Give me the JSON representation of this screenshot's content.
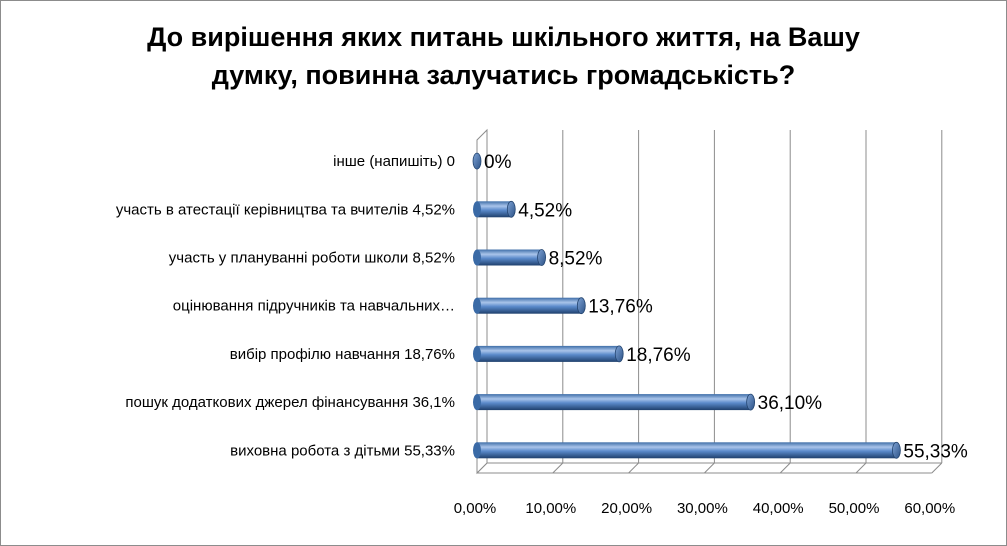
{
  "chart_data": {
    "type": "bar",
    "orientation": "horizontal",
    "style": "3d-cylinder",
    "title": "До вирішення яких питань шкільного життя, на Вашу думку, повинна залучатись громадськість?",
    "title_lines": [
      "До вирішення яких питань шкільного життя, на Вашу",
      "думку, повинна залучатись громадськість?"
    ],
    "categories": [
      "інше (напишіть) 0",
      "участь в атестації керівництва та вчителів 4,52%",
      "участь у плануванні роботи школи 8,52%",
      "оцінювання підручників та навчальних…",
      "вибір профілю навчання   18,76%",
      "пошук додаткових джерел фінансування 36,1%",
      "виховна робота з дітьми 55,33%"
    ],
    "values": [
      0,
      4.52,
      8.52,
      13.76,
      18.76,
      36.1,
      55.33
    ],
    "data_labels": [
      "0%",
      "4,52%",
      "8,52%",
      "13,76%",
      "18,76%",
      "36,10%",
      "55,33%"
    ],
    "xlim": [
      0,
      60
    ],
    "x_ticks": [
      0,
      10,
      20,
      30,
      40,
      50,
      60
    ],
    "x_tick_labels": [
      "0,00%",
      "10,00%",
      "20,00%",
      "30,00%",
      "40,00%",
      "50,00%",
      "60,00%"
    ],
    "grid": true,
    "legend": "none",
    "colors": {
      "bar_light": "#9db9e4",
      "bar_mid": "#4f81bd",
      "bar_dark": "#244a7c",
      "grid": "#8c8c8c",
      "wall": "#ffffff"
    }
  }
}
